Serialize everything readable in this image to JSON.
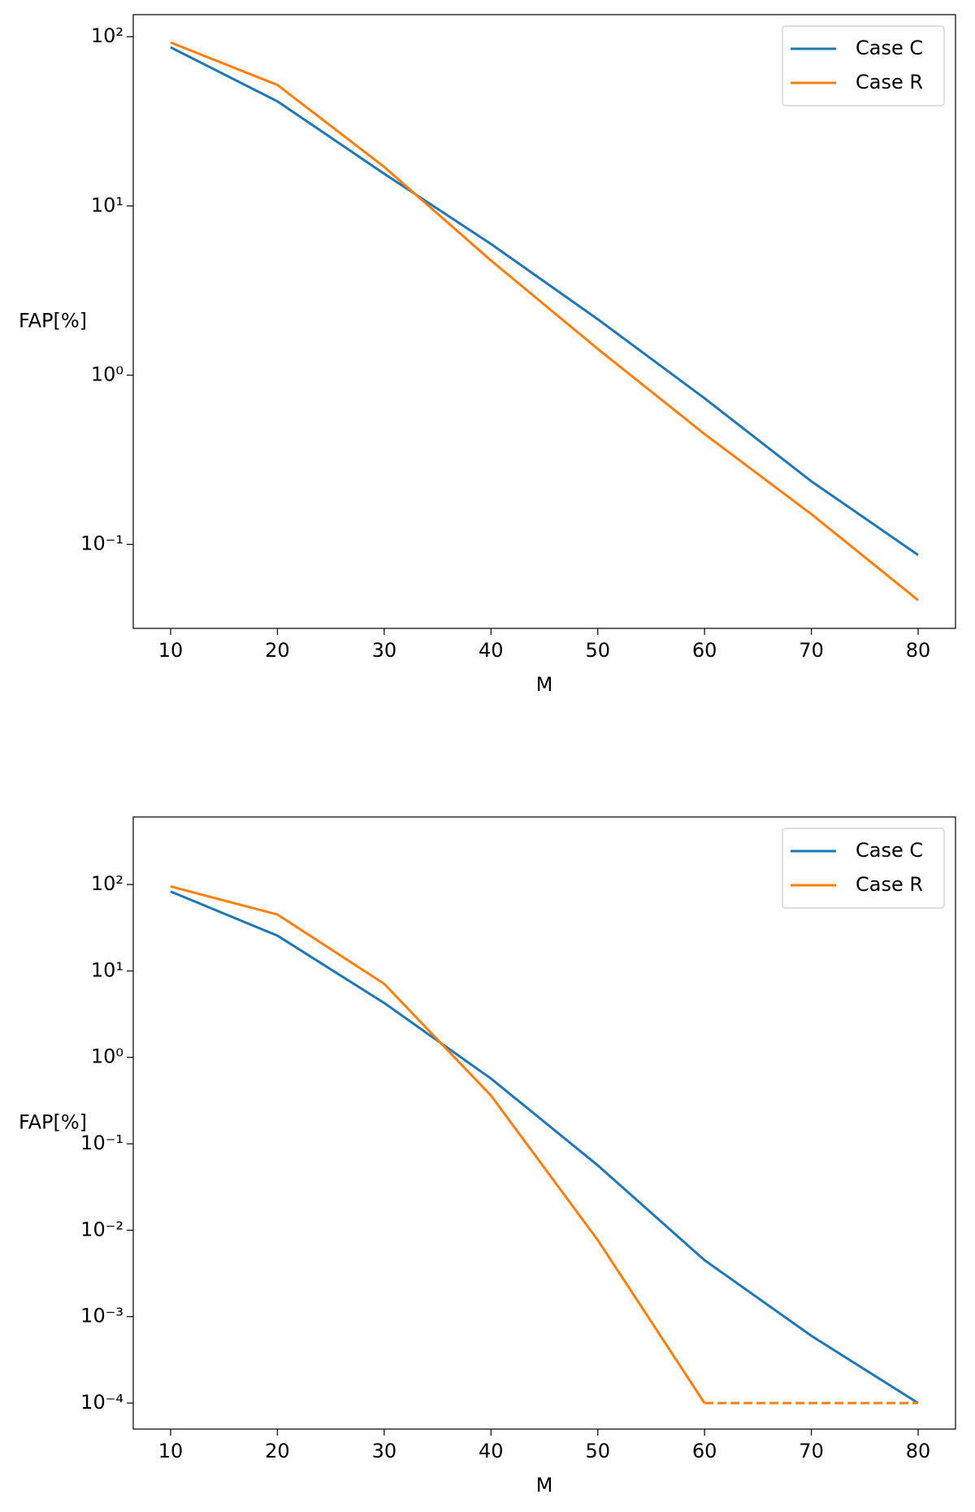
{
  "chart_data": [
    {
      "type": "line",
      "yscale": "log",
      "xlabel": "M",
      "ylabel": "FAP[%]",
      "legend": "upper right",
      "x": [
        10,
        20,
        30,
        40,
        50,
        60,
        70,
        80
      ],
      "xlim": [
        6.5,
        83.5
      ],
      "xticks": [
        10,
        20,
        30,
        40,
        50,
        60,
        70,
        80
      ],
      "ylim": [
        0.0319,
        135
      ],
      "yticks": [
        {
          "value": 0.1,
          "label": "10⁻¹"
        },
        {
          "value": 1,
          "label": "10⁰"
        },
        {
          "value": 10,
          "label": "10¹"
        },
        {
          "value": 100,
          "label": "10²"
        }
      ],
      "series": [
        {
          "name": "Case C",
          "color": "#1f77b4",
          "values": [
            86.5,
            41.5,
            15.5,
            5.96,
            2.14,
            0.73,
            0.236,
            0.0866
          ]
        },
        {
          "name": "Case R",
          "color": "#ff7f0e",
          "values": [
            92.4,
            51.9,
            17,
            4.76,
            1.43,
            0.449,
            0.151,
            0.0468
          ]
        }
      ]
    },
    {
      "type": "line",
      "yscale": "log",
      "xlabel": "M",
      "ylabel": "FAP[%]",
      "legend": "upper right",
      "x": [
        10,
        20,
        30,
        40,
        50,
        60,
        70,
        80
      ],
      "xlim": [
        6.5,
        83.5
      ],
      "xticks": [
        10,
        20,
        30,
        40,
        50,
        60,
        70,
        80
      ],
      "ylim": [
        5e-05,
        605
      ],
      "yticks": [
        {
          "value": 0.0001,
          "label": "10⁻⁴"
        },
        {
          "value": 0.001,
          "label": "10⁻³"
        },
        {
          "value": 0.01,
          "label": "10⁻²"
        },
        {
          "value": 0.1,
          "label": "10⁻¹"
        },
        {
          "value": 1,
          "label": "10⁰"
        },
        {
          "value": 10,
          "label": "10¹"
        },
        {
          "value": 100,
          "label": "10²"
        }
      ],
      "series": [
        {
          "name": "Case C",
          "color": "#1f77b4",
          "values": [
            83,
            25.6,
            4.26,
            0.569,
            0.0563,
            0.0045,
            0.0006,
            0.0001
          ]
        },
        {
          "name": "Case R",
          "color": "#ff7f0e",
          "values": [
            95,
            45,
            7.1,
            0.362,
            0.0077,
            0.0001,
            null,
            null
          ]
        },
        {
          "color": "#ff7f0e",
          "dashed": true,
          "values": [
            null,
            null,
            null,
            null,
            null,
            0.0001,
            0.0001,
            0.0001
          ]
        }
      ]
    }
  ]
}
